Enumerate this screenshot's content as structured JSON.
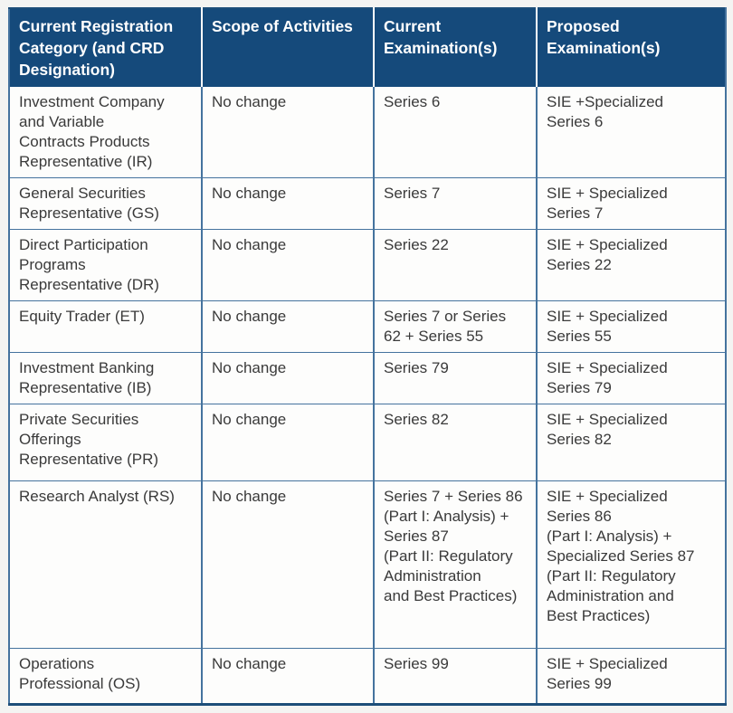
{
  "colors": {
    "header_background": "#154a7b",
    "header_text": "#ffffff",
    "body_text": "#3a3a3a",
    "grid_border": "#45739e",
    "outer_border": "#1d4e79",
    "page_background": "#f4f4f2"
  },
  "table": {
    "header": {
      "category": "Current Registration\nCategory (and CRD\nDesignation)",
      "scope": "Scope of Activities",
      "current": "Current\nExamination(s)",
      "proposed": "Proposed\nExamination(s)"
    },
    "rows": [
      {
        "category": "Investment Company\nand Variable\nContracts Products\nRepresentative (IR)",
        "scope": "No change",
        "current": "Series 6",
        "proposed": "SIE +Specialized\nSeries 6"
      },
      {
        "category": "General Securities\nRepresentative (GS)",
        "scope": "No change",
        "current": "Series 7",
        "proposed": "SIE + Specialized\nSeries 7"
      },
      {
        "category": "Direct Participation\nPrograms\nRepresentative (DR)",
        "scope": "No change",
        "current": "Series 22",
        "proposed": "SIE + Specialized\nSeries 22"
      },
      {
        "category": "Equity Trader (ET)",
        "scope": "No change",
        "current": "Series 7 or Series\n62 + Series 55",
        "proposed": "SIE + Specialized\nSeries 55"
      },
      {
        "category": "Investment Banking\nRepresentative (IB)",
        "scope": "No change",
        "current": "Series 79",
        "proposed": "SIE + Specialized\nSeries 79"
      },
      {
        "category": "Private Securities\nOfferings\nRepresentative (PR)",
        "scope": "No change",
        "current": "Series 82",
        "proposed": "SIE + Specialized\nSeries 82"
      },
      {
        "category": "Research Analyst (RS)",
        "scope": "No change",
        "current": "Series 7 + Series 86\n(Part I: Analysis) +\nSeries 87\n(Part II: Regulatory\nAdministration\nand Best Practices)",
        "proposed": "SIE + Specialized\nSeries 86\n(Part I: Analysis) +\nSpecialized Series 87\n(Part II: Regulatory\nAdministration and\nBest Practices)"
      },
      {
        "category": "Operations\nProfessional (OS)",
        "scope": "No change",
        "current": "Series 99",
        "proposed": "SIE + Specialized\nSeries 99"
      }
    ]
  }
}
